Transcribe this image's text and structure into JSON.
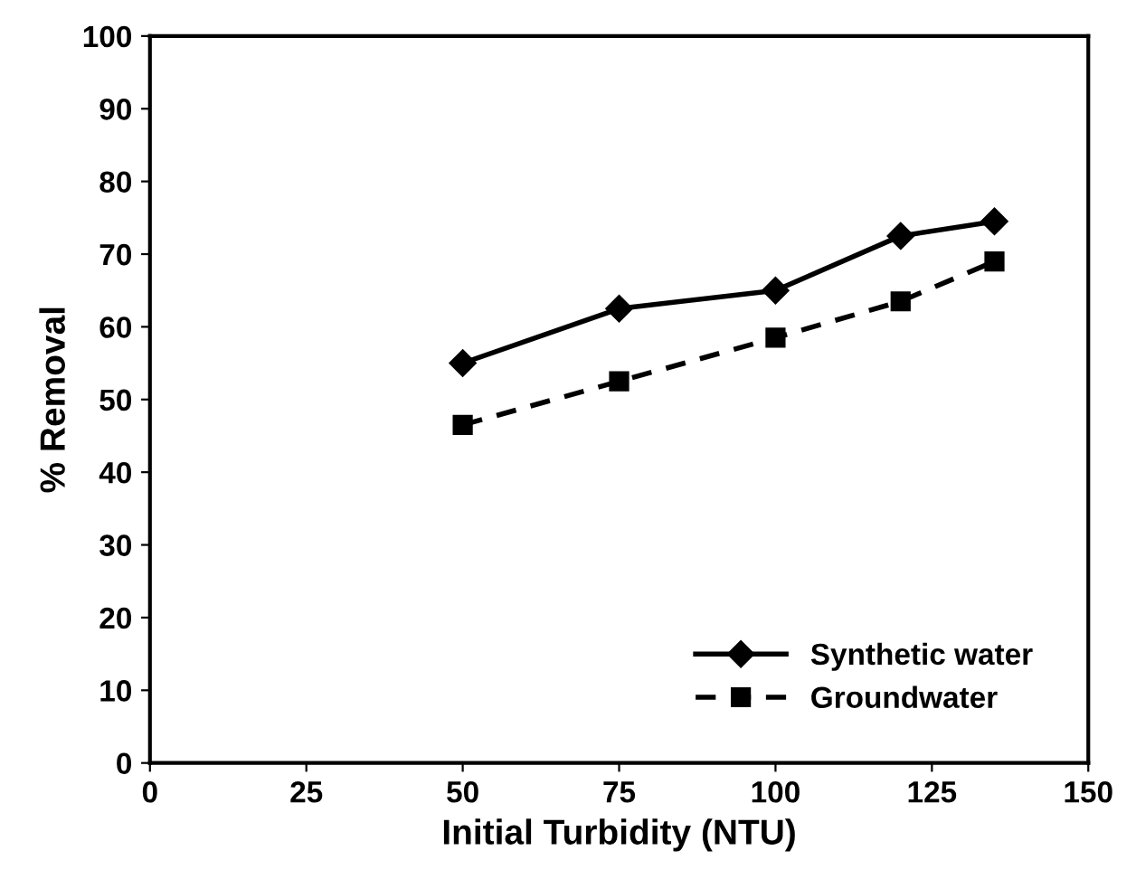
{
  "chart_data": {
    "type": "line",
    "xlabel": "Initial Turbidity (NTU)",
    "ylabel": "% Removal",
    "x": [
      50,
      75,
      100,
      120,
      135
    ],
    "series": [
      {
        "name": "Synthetic water",
        "color": "#000000",
        "values": [
          55,
          62.5,
          65,
          72.5,
          74.5
        ],
        "marker": "diamond",
        "line_style": "solid"
      },
      {
        "name": "Groundwater",
        "color": "#000000",
        "values": [
          46.5,
          52.5,
          58.5,
          63.5,
          69
        ],
        "marker": "square",
        "line_style": "dashed"
      }
    ],
    "xlim": [
      0,
      150
    ],
    "xticks": [
      0,
      25,
      50,
      75,
      100,
      125,
      150
    ],
    "ylim": [
      0,
      100
    ],
    "yticks": [
      0,
      10,
      20,
      30,
      40,
      50,
      60,
      70,
      80,
      90,
      100
    ],
    "grid": false,
    "legend": "bottom right"
  }
}
